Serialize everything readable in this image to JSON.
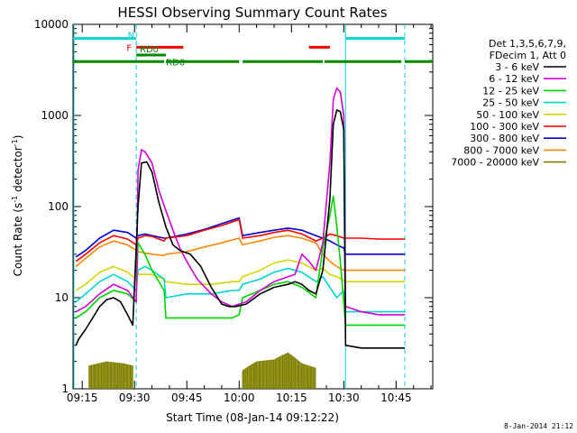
{
  "chart_data": {
    "type": "line",
    "title": "HESSI Observing Summary Count Rates",
    "xlabel": "Start Time (08-Jan-14 09:12:22)",
    "ylabel": "Count Rate (s⁻¹ detector⁻¹)",
    "ylabel_parts": [
      "Count Rate (s",
      "-1",
      " detector",
      "-1",
      ")"
    ],
    "x_ticks": [
      "09:15",
      "09:30",
      "09:45",
      "10:00",
      "10:15",
      "10:30",
      "10:45"
    ],
    "x_tick_minutes": [
      15,
      30,
      45,
      60,
      75,
      90,
      105
    ],
    "xlim": [
      12.37,
      115.5
    ],
    "y_scale": "log",
    "ylim": [
      1,
      10000
    ],
    "y_ticks": [
      "1",
      "10",
      "100",
      "1000",
      "10000"
    ],
    "legend_placement": "right",
    "legend_header": [
      "Det 1,3,5,6,7,9,",
      "FDecim 1, Att 0"
    ],
    "series": [
      {
        "name": "3 - 6 keV",
        "color": "#000000",
        "points": [
          [
            13.2,
            3
          ],
          [
            14,
            3.5
          ],
          [
            16,
            4.5
          ],
          [
            18,
            6
          ],
          [
            20,
            8
          ],
          [
            22,
            9.5
          ],
          [
            24,
            10
          ],
          [
            26,
            9
          ],
          [
            28,
            6.5
          ],
          [
            29.5,
            5
          ],
          [
            31,
            100
          ],
          [
            32,
            300
          ],
          [
            33.5,
            310
          ],
          [
            35,
            240
          ],
          [
            37,
            110
          ],
          [
            39,
            60
          ],
          [
            41,
            38
          ],
          [
            43,
            33
          ],
          [
            46,
            30
          ],
          [
            49,
            22
          ],
          [
            52,
            13
          ],
          [
            55,
            8.5
          ],
          [
            57,
            8
          ],
          [
            59,
            8
          ],
          [
            62,
            8.5
          ],
          [
            66,
            11
          ],
          [
            70,
            13
          ],
          [
            74,
            14
          ],
          [
            76,
            15
          ],
          [
            78,
            14
          ],
          [
            80,
            12
          ],
          [
            82,
            11
          ],
          [
            84,
            20
          ],
          [
            86,
            120
          ],
          [
            87,
            800
          ],
          [
            88,
            1150
          ],
          [
            89,
            1100
          ],
          [
            90,
            700
          ],
          [
            90.5,
            3
          ],
          [
            95,
            2.8
          ],
          [
            100,
            2.8
          ],
          [
            105,
            2.8
          ],
          [
            107.5,
            2.8
          ]
        ]
      },
      {
        "name": "6 - 12 keV",
        "color": "#d400d4",
        "points": [
          [
            13.2,
            7
          ],
          [
            16,
            8
          ],
          [
            20,
            11
          ],
          [
            24,
            14
          ],
          [
            28,
            12
          ],
          [
            30.5,
            9
          ],
          [
            31,
            250
          ],
          [
            32,
            420
          ],
          [
            33,
            400
          ],
          [
            35,
            300
          ],
          [
            37,
            150
          ],
          [
            39,
            90
          ],
          [
            41,
            55
          ],
          [
            43,
            35
          ],
          [
            45,
            25
          ],
          [
            48,
            16
          ],
          [
            52,
            11
          ],
          [
            55,
            9
          ],
          [
            58,
            8
          ],
          [
            62,
            9
          ],
          [
            66,
            12
          ],
          [
            70,
            15
          ],
          [
            74,
            17
          ],
          [
            76,
            18
          ],
          [
            78,
            30
          ],
          [
            80,
            25
          ],
          [
            82,
            20
          ],
          [
            84,
            40
          ],
          [
            86,
            300
          ],
          [
            87,
            1500
          ],
          [
            88,
            2000
          ],
          [
            89,
            1800
          ],
          [
            90,
            1000
          ],
          [
            90.5,
            8
          ],
          [
            95,
            7
          ],
          [
            100,
            6.5
          ],
          [
            105,
            6.5
          ],
          [
            107.5,
            6.5
          ]
        ]
      },
      {
        "name": "12 - 25 keV",
        "color": "#00d400",
        "points": [
          [
            13.2,
            6
          ],
          [
            16,
            7
          ],
          [
            20,
            10
          ],
          [
            24,
            12
          ],
          [
            28,
            11
          ],
          [
            30.5,
            9
          ],
          [
            31,
            40
          ],
          [
            33,
            30
          ],
          [
            35,
            20
          ],
          [
            38.5,
            12
          ],
          [
            39,
            6
          ],
          [
            45,
            6
          ],
          [
            52,
            6
          ],
          [
            58,
            6
          ],
          [
            60,
            6.5
          ],
          [
            61,
            10
          ],
          [
            66,
            12
          ],
          [
            70,
            14
          ],
          [
            74,
            15
          ],
          [
            78,
            13
          ],
          [
            82,
            10
          ],
          [
            84,
            35
          ],
          [
            86,
            80
          ],
          [
            87,
            130
          ],
          [
            88,
            60
          ],
          [
            89,
            25
          ],
          [
            90.5,
            5
          ],
          [
            95,
            5
          ],
          [
            100,
            5
          ],
          [
            105,
            5
          ],
          [
            107.5,
            5
          ]
        ]
      },
      {
        "name": "25 - 50 keV",
        "color": "#00d4d4",
        "points": [
          [
            13.2,
            9
          ],
          [
            16,
            11
          ],
          [
            20,
            15
          ],
          [
            24,
            18
          ],
          [
            28,
            15
          ],
          [
            30.5,
            12
          ],
          [
            31,
            20
          ],
          [
            33,
            22
          ],
          [
            35,
            20
          ],
          [
            38.5,
            16
          ],
          [
            39,
            10
          ],
          [
            45,
            11
          ],
          [
            52,
            11
          ],
          [
            58,
            12
          ],
          [
            60,
            12
          ],
          [
            61,
            14
          ],
          [
            66,
            16
          ],
          [
            70,
            19
          ],
          [
            74,
            21
          ],
          [
            78,
            19
          ],
          [
            82,
            15
          ],
          [
            84,
            17
          ],
          [
            86,
            13
          ],
          [
            88,
            10
          ],
          [
            90,
            12
          ],
          [
            90.5,
            7
          ],
          [
            95,
            7
          ],
          [
            100,
            7
          ],
          [
            105,
            7
          ],
          [
            107.5,
            7
          ]
        ]
      },
      {
        "name": "50 - 100 keV",
        "color": "#d4d400",
        "points": [
          [
            13.2,
            12
          ],
          [
            16,
            14
          ],
          [
            20,
            19
          ],
          [
            24,
            22
          ],
          [
            28,
            19
          ],
          [
            30.5,
            16
          ],
          [
            31,
            18
          ],
          [
            35,
            18
          ],
          [
            38.5,
            16
          ],
          [
            39,
            15
          ],
          [
            45,
            14
          ],
          [
            52,
            14
          ],
          [
            58,
            15
          ],
          [
            60,
            15
          ],
          [
            61,
            17
          ],
          [
            66,
            20
          ],
          [
            70,
            24
          ],
          [
            74,
            26
          ],
          [
            78,
            24
          ],
          [
            82,
            20
          ],
          [
            84,
            21
          ],
          [
            86,
            18
          ],
          [
            88,
            17
          ],
          [
            90.5,
            15
          ],
          [
            95,
            15
          ],
          [
            100,
            15
          ],
          [
            105,
            15
          ],
          [
            107.5,
            15
          ]
        ]
      },
      {
        "name": "100 - 300 keV",
        "color": "#ff0000",
        "points": [
          [
            13.2,
            25
          ],
          [
            16,
            30
          ],
          [
            20,
            40
          ],
          [
            24,
            48
          ],
          [
            28,
            44
          ],
          [
            30.5,
            38
          ],
          [
            31,
            45
          ],
          [
            33,
            48
          ],
          [
            35,
            47
          ],
          [
            38.5,
            42
          ],
          [
            39,
            45
          ],
          [
            45,
            48
          ],
          [
            50,
            55
          ],
          [
            55,
            62
          ],
          [
            60,
            72
          ],
          [
            61,
            45
          ],
          [
            66,
            48
          ],
          [
            70,
            52
          ],
          [
            74,
            55
          ],
          [
            78,
            50
          ],
          [
            82,
            42
          ],
          [
            84,
            45
          ],
          [
            86,
            50
          ],
          [
            88,
            48
          ],
          [
            90,
            45
          ],
          [
            90.5,
            45
          ],
          [
            95,
            45
          ],
          [
            100,
            44
          ],
          [
            105,
            44
          ],
          [
            107.5,
            44
          ]
        ]
      },
      {
        "name": "300 - 800 keV",
        "color": "#0000d4",
        "points": [
          [
            13.2,
            28
          ],
          [
            16,
            33
          ],
          [
            20,
            45
          ],
          [
            24,
            55
          ],
          [
            28,
            52
          ],
          [
            30.5,
            45
          ],
          [
            31,
            48
          ],
          [
            33,
            50
          ],
          [
            35,
            48
          ],
          [
            38.5,
            45
          ],
          [
            39,
            45
          ],
          [
            45,
            50
          ],
          [
            50,
            56
          ],
          [
            55,
            65
          ],
          [
            60,
            75
          ],
          [
            61,
            48
          ],
          [
            66,
            52
          ],
          [
            70,
            55
          ],
          [
            74,
            58
          ],
          [
            78,
            55
          ],
          [
            82,
            48
          ],
          [
            84,
            45
          ],
          [
            86,
            42
          ],
          [
            88,
            38
          ],
          [
            90,
            35
          ],
          [
            90.5,
            30
          ],
          [
            95,
            30
          ],
          [
            100,
            30
          ],
          [
            105,
            30
          ],
          [
            107.5,
            30
          ]
        ]
      },
      {
        "name": "800 - 7000 keV",
        "color": "#ff8800",
        "points": [
          [
            13.2,
            22
          ],
          [
            16,
            27
          ],
          [
            20,
            36
          ],
          [
            24,
            42
          ],
          [
            28,
            38
          ],
          [
            30.5,
            33
          ],
          [
            31,
            32
          ],
          [
            35,
            30
          ],
          [
            38.5,
            29
          ],
          [
            39,
            30
          ],
          [
            45,
            32
          ],
          [
            50,
            36
          ],
          [
            55,
            40
          ],
          [
            60,
            45
          ],
          [
            61,
            38
          ],
          [
            66,
            42
          ],
          [
            70,
            46
          ],
          [
            74,
            48
          ],
          [
            78,
            45
          ],
          [
            82,
            40
          ],
          [
            84,
            30
          ],
          [
            86,
            25
          ],
          [
            88,
            22
          ],
          [
            90,
            20
          ],
          [
            90.5,
            20
          ],
          [
            95,
            20
          ],
          [
            100,
            20
          ],
          [
            105,
            20
          ],
          [
            107.5,
            20
          ]
        ]
      },
      {
        "name": "7000 - 20000 keV",
        "color": "#808000",
        "points": [
          [
            17,
            1.8
          ],
          [
            22,
            2
          ],
          [
            27,
            1.9
          ],
          [
            29.5,
            1.8
          ],
          [
            61,
            1.6
          ],
          [
            65,
            2
          ],
          [
            70,
            2.1
          ],
          [
            74,
            2.5
          ],
          [
            78,
            1.9
          ],
          [
            82,
            1.7
          ]
        ]
      }
    ],
    "state_bars": [
      {
        "label": "N",
        "color": "#00d4d4",
        "level": 7000,
        "segments": [
          [
            12.37,
            30.5
          ],
          [
            90.5,
            107.5
          ]
        ]
      },
      {
        "label": "F",
        "color": "#ff0000",
        "level": 5600,
        "segments": [
          [
            30.5,
            44
          ],
          [
            80,
            86
          ]
        ]
      },
      {
        "label": "RD0",
        "color": "#008800",
        "level": 4600,
        "segments": [
          [
            30.5,
            39
          ]
        ]
      },
      {
        "label": "RD6",
        "color": "#008800",
        "level": 3900,
        "segments": [
          [
            12.37,
            38.5
          ],
          [
            39,
            60
          ],
          [
            61,
            84
          ],
          [
            84.5,
            106.5
          ],
          [
            107.5,
            115.5
          ]
        ]
      }
    ],
    "dashed_markers": [
      30.5,
      107.5
    ],
    "solid_markers": [
      90.5
    ]
  },
  "footer_date": "8-Jan-2014 21:12"
}
